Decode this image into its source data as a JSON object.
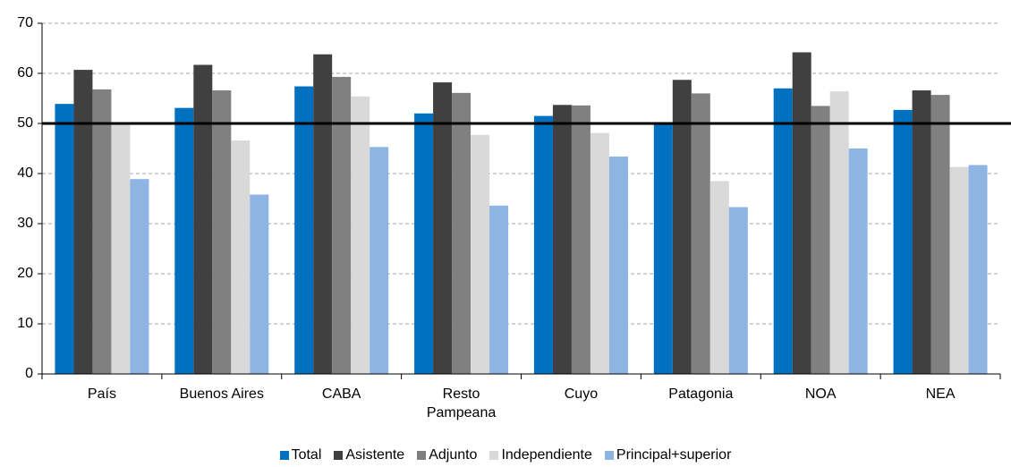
{
  "chart_data": {
    "type": "bar",
    "categories": [
      "País",
      "Buenos Aires",
      "CABA",
      "Resto\nPampeana",
      "Cuyo",
      "Patagonia",
      "NOA",
      "NEA"
    ],
    "series": [
      {
        "name": "Total",
        "color": "#0070c0",
        "values": [
          53.9,
          53.1,
          57.4,
          52.0,
          51.5,
          49.8,
          57.0,
          52.7
        ]
      },
      {
        "name": "Asistente",
        "color": "#404040",
        "values": [
          60.7,
          61.7,
          63.8,
          58.2,
          53.7,
          58.7,
          64.2,
          56.6
        ]
      },
      {
        "name": "Adjunto",
        "color": "#808080",
        "values": [
          56.8,
          56.6,
          59.3,
          56.1,
          53.6,
          56.0,
          53.5,
          55.7
        ]
      },
      {
        "name": "Independiente",
        "color": "#d9d9d9",
        "values": [
          49.8,
          46.6,
          55.4,
          47.7,
          48.1,
          38.5,
          56.4,
          41.3
        ]
      },
      {
        "name": "Principal+superior",
        "color": "#8eb4e3",
        "values": [
          38.9,
          35.8,
          45.3,
          33.6,
          43.4,
          33.3,
          45.0,
          41.7
        ]
      }
    ],
    "ylim": [
      0,
      70
    ],
    "yticks": [
      0,
      10,
      20,
      30,
      40,
      50,
      60,
      70
    ],
    "grid": true,
    "reference_line": 50,
    "legend": "bottom"
  }
}
